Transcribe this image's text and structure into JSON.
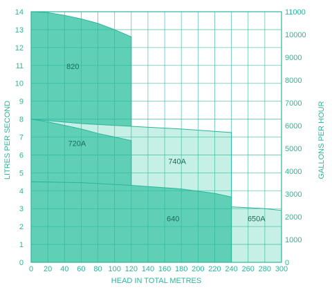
{
  "chart_data": {
    "type": "area",
    "xlabel": "HEAD IN TOTAL METRES",
    "ylabel_left": "LITRES PER SECOND",
    "ylabel_right": "GALLONS PER HOUR",
    "xlim": [
      0,
      300
    ],
    "ylim_left": [
      0,
      14
    ],
    "ylim_right": [
      0,
      11000
    ],
    "x_ticks": [
      "0",
      "20",
      "40",
      "60",
      "80",
      "100",
      "120",
      "140",
      "160",
      "180",
      "200",
      "220",
      "240",
      "260",
      "280",
      "300"
    ],
    "y_ticks_left": [
      "0",
      "1",
      "2",
      "3",
      "4",
      "5",
      "6",
      "7",
      "8",
      "9",
      "10",
      "11",
      "12",
      "13",
      "14"
    ],
    "y_ticks_right": [
      "0",
      "1000",
      "2000",
      "3000",
      "4000",
      "5000",
      "6000",
      "7000",
      "8000",
      "9000",
      "10000",
      "11000"
    ],
    "grid": true,
    "colors": {
      "line": "#2bb59a",
      "fill_dark": "#5fd0b6",
      "fill_light": "#c6f0e5",
      "text": "#2bb59a",
      "label": "#1a6b5c"
    },
    "series": [
      {
        "name": "820",
        "x": [
          0,
          20,
          40,
          60,
          80,
          100,
          120,
          120
        ],
        "y": [
          14.0,
          13.95,
          13.8,
          13.6,
          13.35,
          13.0,
          12.6,
          0
        ]
      },
      {
        "name": "740A",
        "x": [
          0,
          60,
          120,
          180,
          240,
          240
        ],
        "y": [
          8.0,
          7.75,
          7.6,
          7.45,
          7.25,
          0
        ]
      },
      {
        "name": "720A",
        "x": [
          0,
          20,
          40,
          60,
          80,
          100,
          120,
          120
        ],
        "y": [
          8.0,
          7.85,
          7.65,
          7.45,
          7.2,
          7.0,
          6.8,
          0
        ]
      },
      {
        "name": "650A",
        "x": [
          240,
          260,
          280,
          300,
          300
        ],
        "y": [
          3.1,
          3.05,
          3.0,
          2.9,
          0
        ]
      },
      {
        "name": "640",
        "x": [
          0,
          60,
          120,
          180,
          220,
          240,
          240
        ],
        "y": [
          4.5,
          4.45,
          4.3,
          4.1,
          3.85,
          3.65,
          0
        ]
      }
    ]
  }
}
